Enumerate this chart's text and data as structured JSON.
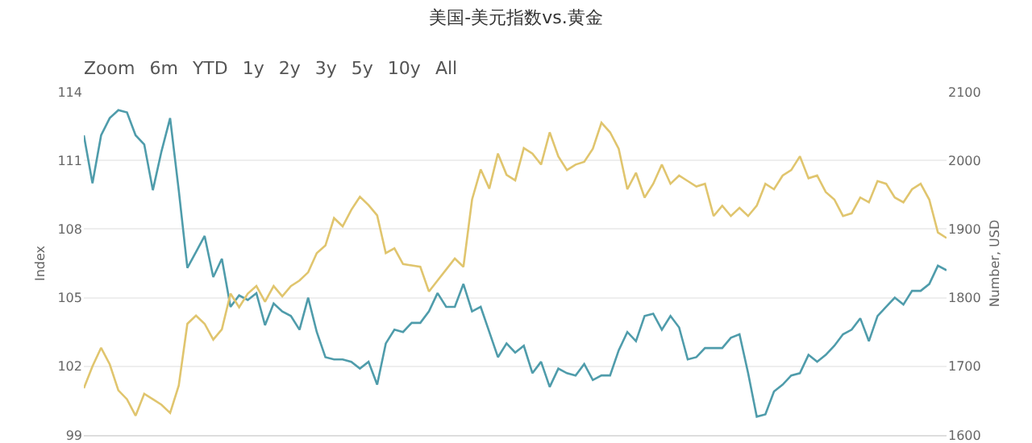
{
  "chart_data": {
    "type": "line",
    "title": "美国-美元指数vs.黄金",
    "ylabel": "Index",
    "y2label": "Number, USD",
    "annotations": [
      "Zoom",
      "6m",
      "YTD",
      "1y",
      "2y",
      "3y",
      "5y",
      "10y",
      "All"
    ],
    "categories": [
      null,
      null,
      null,
      null,
      null,
      null,
      null,
      null,
      null,
      null,
      null,
      null,
      null,
      null,
      null,
      null,
      null,
      null,
      null,
      null,
      null,
      null,
      null,
      null,
      null,
      null,
      null,
      null,
      null,
      null,
      null,
      null,
      null,
      null,
      null,
      null,
      null,
      null,
      null,
      null,
      null,
      null,
      null,
      null,
      null,
      null,
      null,
      null,
      null,
      null,
      null,
      null,
      null,
      null,
      null,
      null,
      null,
      null,
      null,
      null,
      null,
      null,
      null,
      null,
      null,
      null,
      null,
      null,
      null,
      null,
      null,
      null,
      null,
      null,
      null,
      null,
      null,
      null,
      null,
      null,
      null,
      null,
      null,
      null,
      null,
      null,
      null,
      null,
      null,
      null,
      null,
      null,
      null,
      null,
      null,
      null,
      null,
      null,
      null,
      null,
      null
    ],
    "ylim": [
      99,
      114
    ],
    "yticks": [
      99,
      102,
      105,
      108,
      111,
      114
    ],
    "y2lim": [
      1600,
      2100
    ],
    "y2ticks": [
      1600,
      1700,
      1800,
      1900,
      2000,
      2100
    ],
    "tick_labels": "y",
    "grid": "y",
    "marker": "none",
    "line_style": "solid",
    "series": [
      {
        "color": "#4f9cab",
        "axis": "y",
        "values": [
          112.1,
          110.0,
          112.1,
          112.85,
          113.2,
          113.1,
          112.1,
          111.7,
          109.7,
          111.4,
          112.85,
          109.7,
          106.3,
          107.0,
          107.7,
          105.9,
          106.7,
          104.6,
          105.1,
          104.9,
          105.2,
          103.8,
          104.75,
          104.4,
          104.2,
          103.6,
          105.0,
          103.5,
          102.4,
          102.3,
          102.3,
          102.2,
          101.9,
          102.2,
          101.2,
          103.0,
          103.6,
          103.5,
          103.9,
          103.9,
          104.4,
          105.2,
          104.6,
          104.6,
          105.6,
          104.4,
          104.6,
          103.5,
          102.4,
          103.0,
          102.6,
          102.9,
          101.7,
          102.2,
          101.1,
          101.9,
          101.7,
          101.6,
          102.1,
          101.4,
          101.6,
          101.6,
          102.7,
          103.5,
          103.1,
          104.2,
          104.3,
          103.6,
          104.2,
          103.7,
          102.3,
          102.4,
          102.8,
          102.8,
          102.8,
          103.25,
          103.4,
          101.7,
          99.8,
          99.9,
          100.9,
          101.2,
          101.6,
          101.7,
          102.5,
          102.2,
          102.5,
          102.9,
          103.4,
          103.6,
          104.1,
          103.1,
          104.2,
          104.6,
          105.0,
          104.7,
          105.3,
          105.3,
          105.6,
          106.4,
          106.2
        ]
      },
      {
        "color": "#e0c56e",
        "axis": "y2",
        "values": [
          1668,
          1700,
          1727,
          1703,
          1665,
          1652,
          1628,
          1660,
          1652,
          1644,
          1632,
          1672,
          1762,
          1774,
          1762,
          1739,
          1754,
          1806,
          1786,
          1806,
          1817,
          1794,
          1817,
          1802,
          1817,
          1825,
          1837,
          1865,
          1876,
          1916,
          1904,
          1928,
          1947,
          1935,
          1920,
          1865,
          1872,
          1849,
          1847,
          1845,
          1809,
          1825,
          1841,
          1857,
          1845,
          1943,
          1987,
          1959,
          2010,
          1979,
          1971,
          2018,
          2010,
          1994,
          2041,
          2006,
          1986,
          1994,
          1998,
          2017,
          2055,
          2041,
          2017,
          1958,
          1982,
          1946,
          1966,
          1994,
          1966,
          1978,
          1970,
          1962,
          1966,
          1919,
          1934,
          1919,
          1931,
          1919,
          1934,
          1966,
          1958,
          1978,
          1986,
          2006,
          1974,
          1978,
          1954,
          1943,
          1919,
          1923,
          1946,
          1939,
          1970,
          1966,
          1946,
          1939,
          1958,
          1966,
          1943,
          1895,
          1887
        ]
      }
    ]
  }
}
